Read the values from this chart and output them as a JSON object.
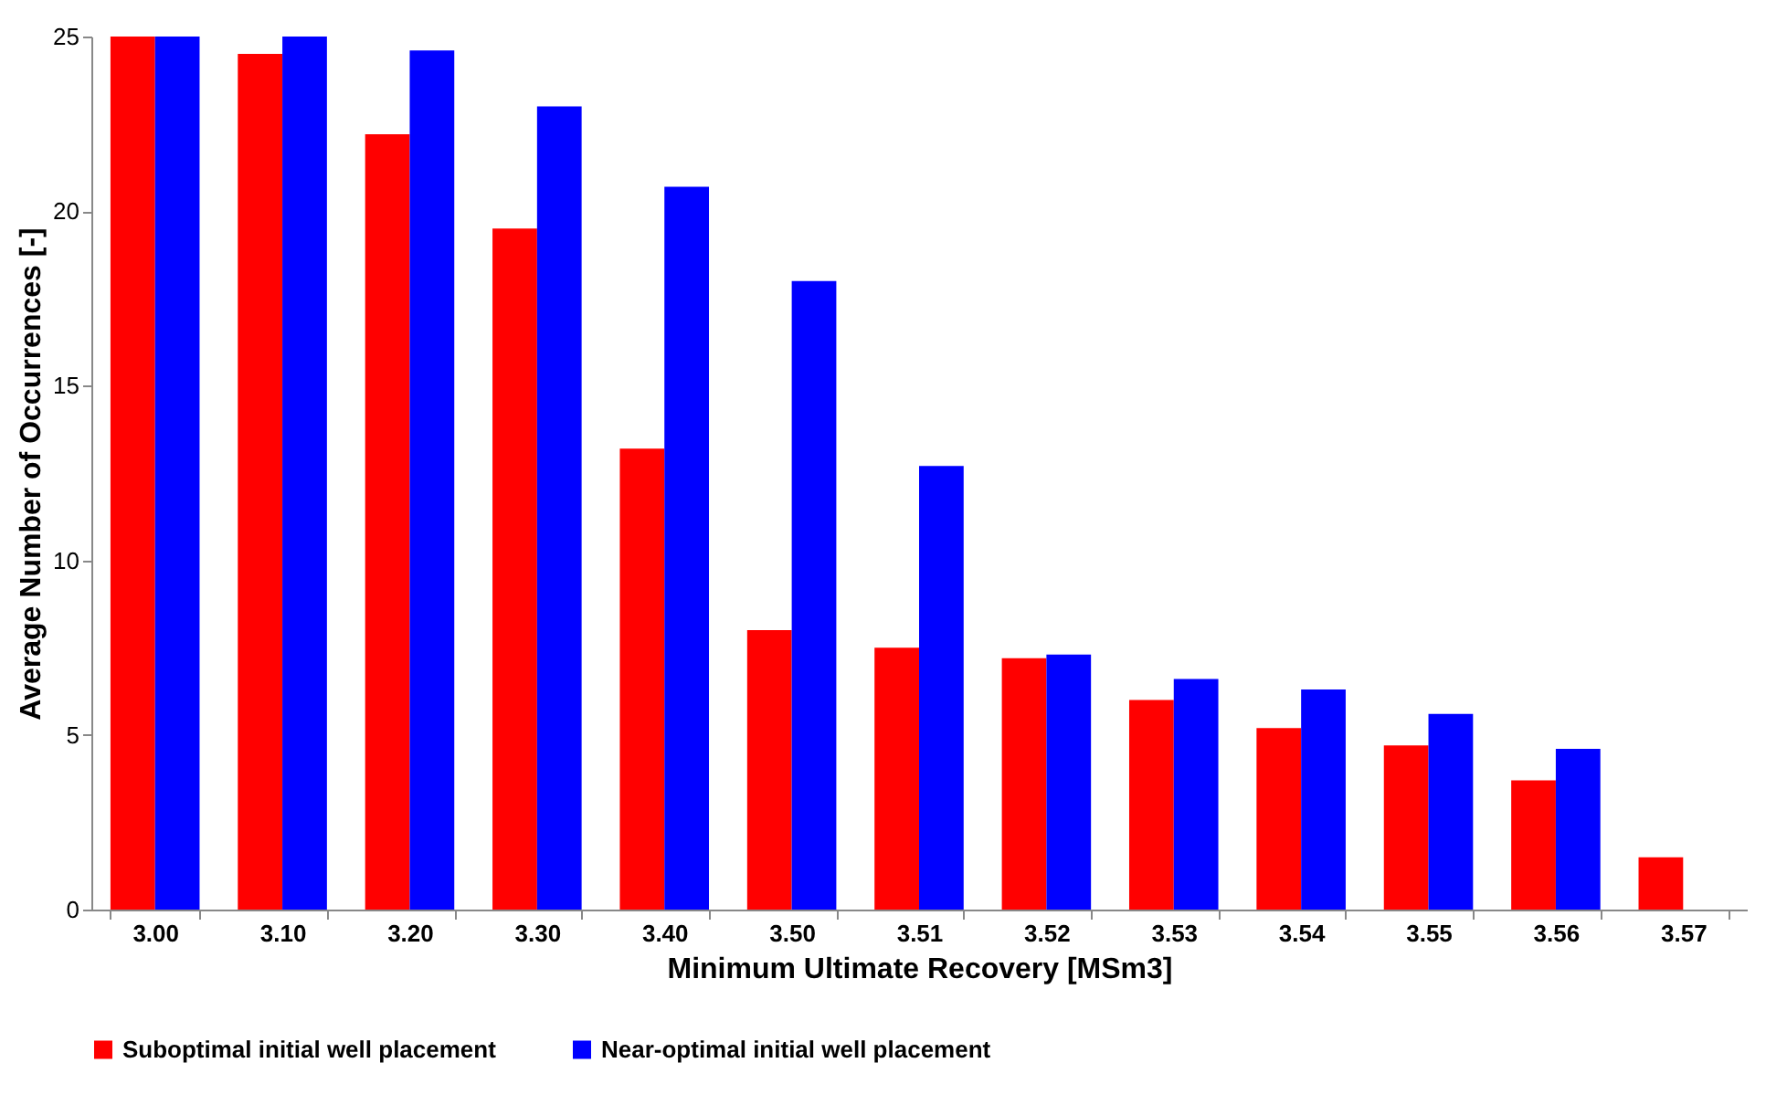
{
  "chart_data": {
    "type": "bar",
    "xlabel": "Minimum Ultimate Recovery [MSm3]",
    "ylabel": "Average Number of Occurrences [-]",
    "categories": [
      "3.00",
      "3.10",
      "3.20",
      "3.30",
      "3.40",
      "3.50",
      "3.51",
      "3.52",
      "3.53",
      "3.54",
      "3.55",
      "3.56",
      "3.57"
    ],
    "series": [
      {
        "name": "Suboptimal initial well placement",
        "color": "#ff0000",
        "values": [
          25,
          24.5,
          22.2,
          19.5,
          13.2,
          8.0,
          7.5,
          7.2,
          6.0,
          5.2,
          4.7,
          3.7,
          1.5
        ]
      },
      {
        "name": "Near-optimal initial well placement",
        "color": "#0000ff",
        "values": [
          25,
          25,
          24.6,
          23.0,
          20.7,
          18.0,
          12.7,
          7.3,
          6.6,
          6.3,
          5.6,
          4.6,
          null
        ]
      }
    ],
    "ylim": [
      0,
      25
    ],
    "yticks": [
      0,
      5,
      10,
      15,
      20,
      25
    ],
    "grid": false,
    "legend": "bottom"
  }
}
